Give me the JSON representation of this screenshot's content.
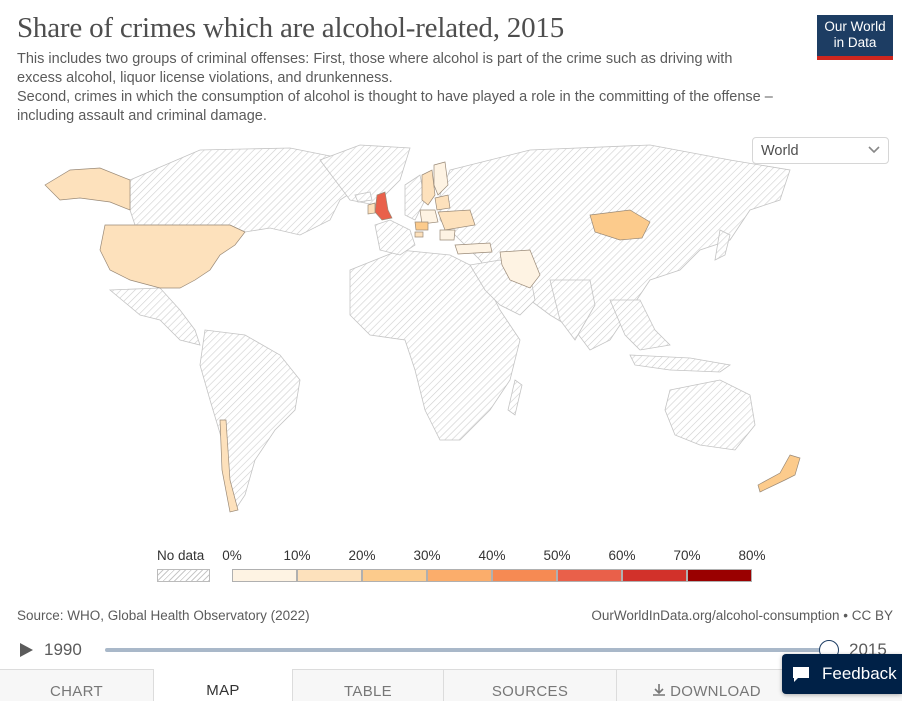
{
  "header": {
    "title": "Share of crimes which are alcohol-related, 2015",
    "subtitle_lines": [
      "This includes two groups of criminal offenses: First, those where alcohol is part of the crime such as driving with excess alcohol, liquor license violations, and drunkenness.",
      "Second, crimes in which the consumption of alcohol is thought to have played a role in the committing of the offense – including assault and criminal damage."
    ]
  },
  "logo": {
    "line1": "Our World",
    "line2": "in Data",
    "bg_color": "#1d3d63",
    "accent_color": "#ce261e"
  },
  "region_select": {
    "value": "World",
    "icon": "chevron-down-icon"
  },
  "legend": {
    "no_data_label": "No data",
    "ticks": [
      "0%",
      "10%",
      "20%",
      "30%",
      "40%",
      "50%",
      "60%",
      "70%",
      "80%"
    ],
    "bin_colors": [
      "#fef3e3",
      "#fde1bc",
      "#fccb8c",
      "#fbad6b",
      "#f68a53",
      "#e9604a",
      "#d2312a",
      "#9a0000"
    ]
  },
  "map": {
    "colored_countries": [
      {
        "name": "Alaska (United States)",
        "color": "#fde1bc"
      },
      {
        "name": "United States",
        "color": "#fde1bc"
      },
      {
        "name": "United Kingdom",
        "color": "#e9604a"
      },
      {
        "name": "Ireland",
        "color": "#fde1bc"
      },
      {
        "name": "Finland",
        "color": "#fef3e3"
      },
      {
        "name": "Sweden",
        "color": "#fde1bc"
      },
      {
        "name": "Estonia",
        "color": "#fde1bc"
      },
      {
        "name": "Latvia",
        "color": "#fde1bc"
      },
      {
        "name": "Lithuania",
        "color": "#fde1bc"
      },
      {
        "name": "Poland",
        "color": "#fef3e3"
      },
      {
        "name": "Czechia",
        "color": "#fccb8c"
      },
      {
        "name": "Ukraine",
        "color": "#fde1bc"
      },
      {
        "name": "Slovenia",
        "color": "#fde1bc"
      },
      {
        "name": "Romania",
        "color": "#fef3e3"
      },
      {
        "name": "Turkey",
        "color": "#fef3e3"
      },
      {
        "name": "Iran",
        "color": "#fef3e3"
      },
      {
        "name": "Mongolia",
        "color": "#fccb8c"
      },
      {
        "name": "Chile",
        "color": "#fde1bc"
      },
      {
        "name": "New Zealand",
        "color": "#fccb8c"
      }
    ]
  },
  "footer": {
    "source": "Source: WHO, Global Health Observatory (2022)",
    "credit": "OurWorldInData.org/alcohol-consumption • CC BY"
  },
  "timeline": {
    "start_year": "1990",
    "end_year": "2015",
    "play_icon": "play-icon",
    "position": 1.0
  },
  "tabs": [
    {
      "label": "CHART",
      "active": false
    },
    {
      "label": "MAP",
      "active": true
    },
    {
      "label": "TABLE",
      "active": false
    },
    {
      "label": "SOURCES",
      "active": false
    },
    {
      "label": "DOWNLOAD",
      "active": false,
      "icon": "download-icon"
    }
  ],
  "feedback": {
    "label": "Feedback",
    "icon": "feedback-icon"
  }
}
